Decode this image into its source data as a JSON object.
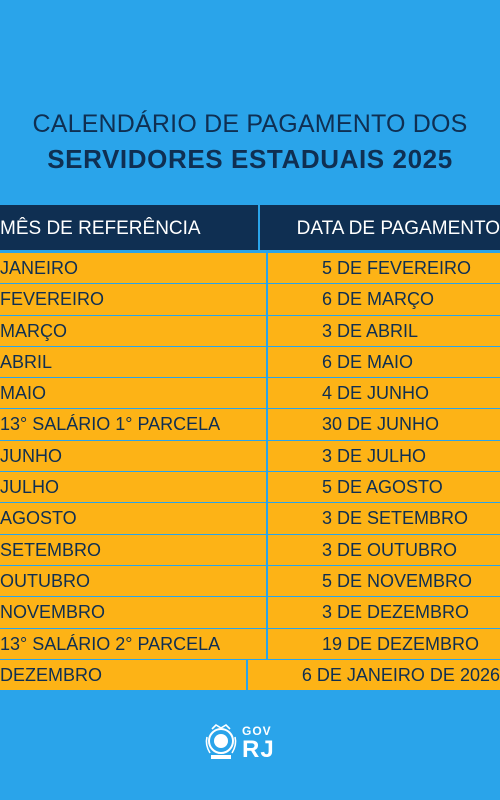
{
  "header": {
    "title_line1": "CALENDÁRIO DE PAGAMENTO DOS",
    "title_line2": "SERVIDORES ESTADUAIS 2025"
  },
  "table": {
    "columns": [
      "MÊS DE REFERÊNCIA",
      "DATA DE PAGAMENTO"
    ],
    "rows": [
      {
        "month": "JANEIRO",
        "date": "5 DE FEVEREIRO"
      },
      {
        "month": "FEVEREIRO",
        "date": "6 DE MARÇO"
      },
      {
        "month": "MARÇO",
        "date": "3 DE ABRIL"
      },
      {
        "month": "ABRIL",
        "date": "6 DE MAIO"
      },
      {
        "month": "MAIO",
        "date": "4 DE JUNHO"
      },
      {
        "month": "13° SALÁRIO 1° PARCELA",
        "date": "30 DE JUNHO"
      },
      {
        "month": "JUNHO",
        "date": "3 DE JULHO"
      },
      {
        "month": "JULHO",
        "date": "5 DE AGOSTO"
      },
      {
        "month": "AGOSTO",
        "date": "3 DE SETEMBRO"
      },
      {
        "month": "SETEMBRO",
        "date": "3 DE OUTUBRO"
      },
      {
        "month": "OUTUBRO",
        "date": "5 DE NOVEMBRO"
      },
      {
        "month": "NOVEMBRO",
        "date": "3 DE DEZEMBRO"
      },
      {
        "month": "13° SALÁRIO 2° PARCELA",
        "date": "19 DE DEZEMBRO"
      },
      {
        "month": "DEZEMBRO",
        "date": "6 DE JANEIRO DE 2026"
      }
    ]
  },
  "footer": {
    "logo_top": "GOV",
    "logo_bottom": "RJ",
    "seal_icon": "rj-coat-of-arms-icon"
  },
  "colors": {
    "background": "#2aa4ea",
    "navy": "#0f2f52",
    "row_fill": "#fdb316",
    "white": "#ffffff"
  }
}
